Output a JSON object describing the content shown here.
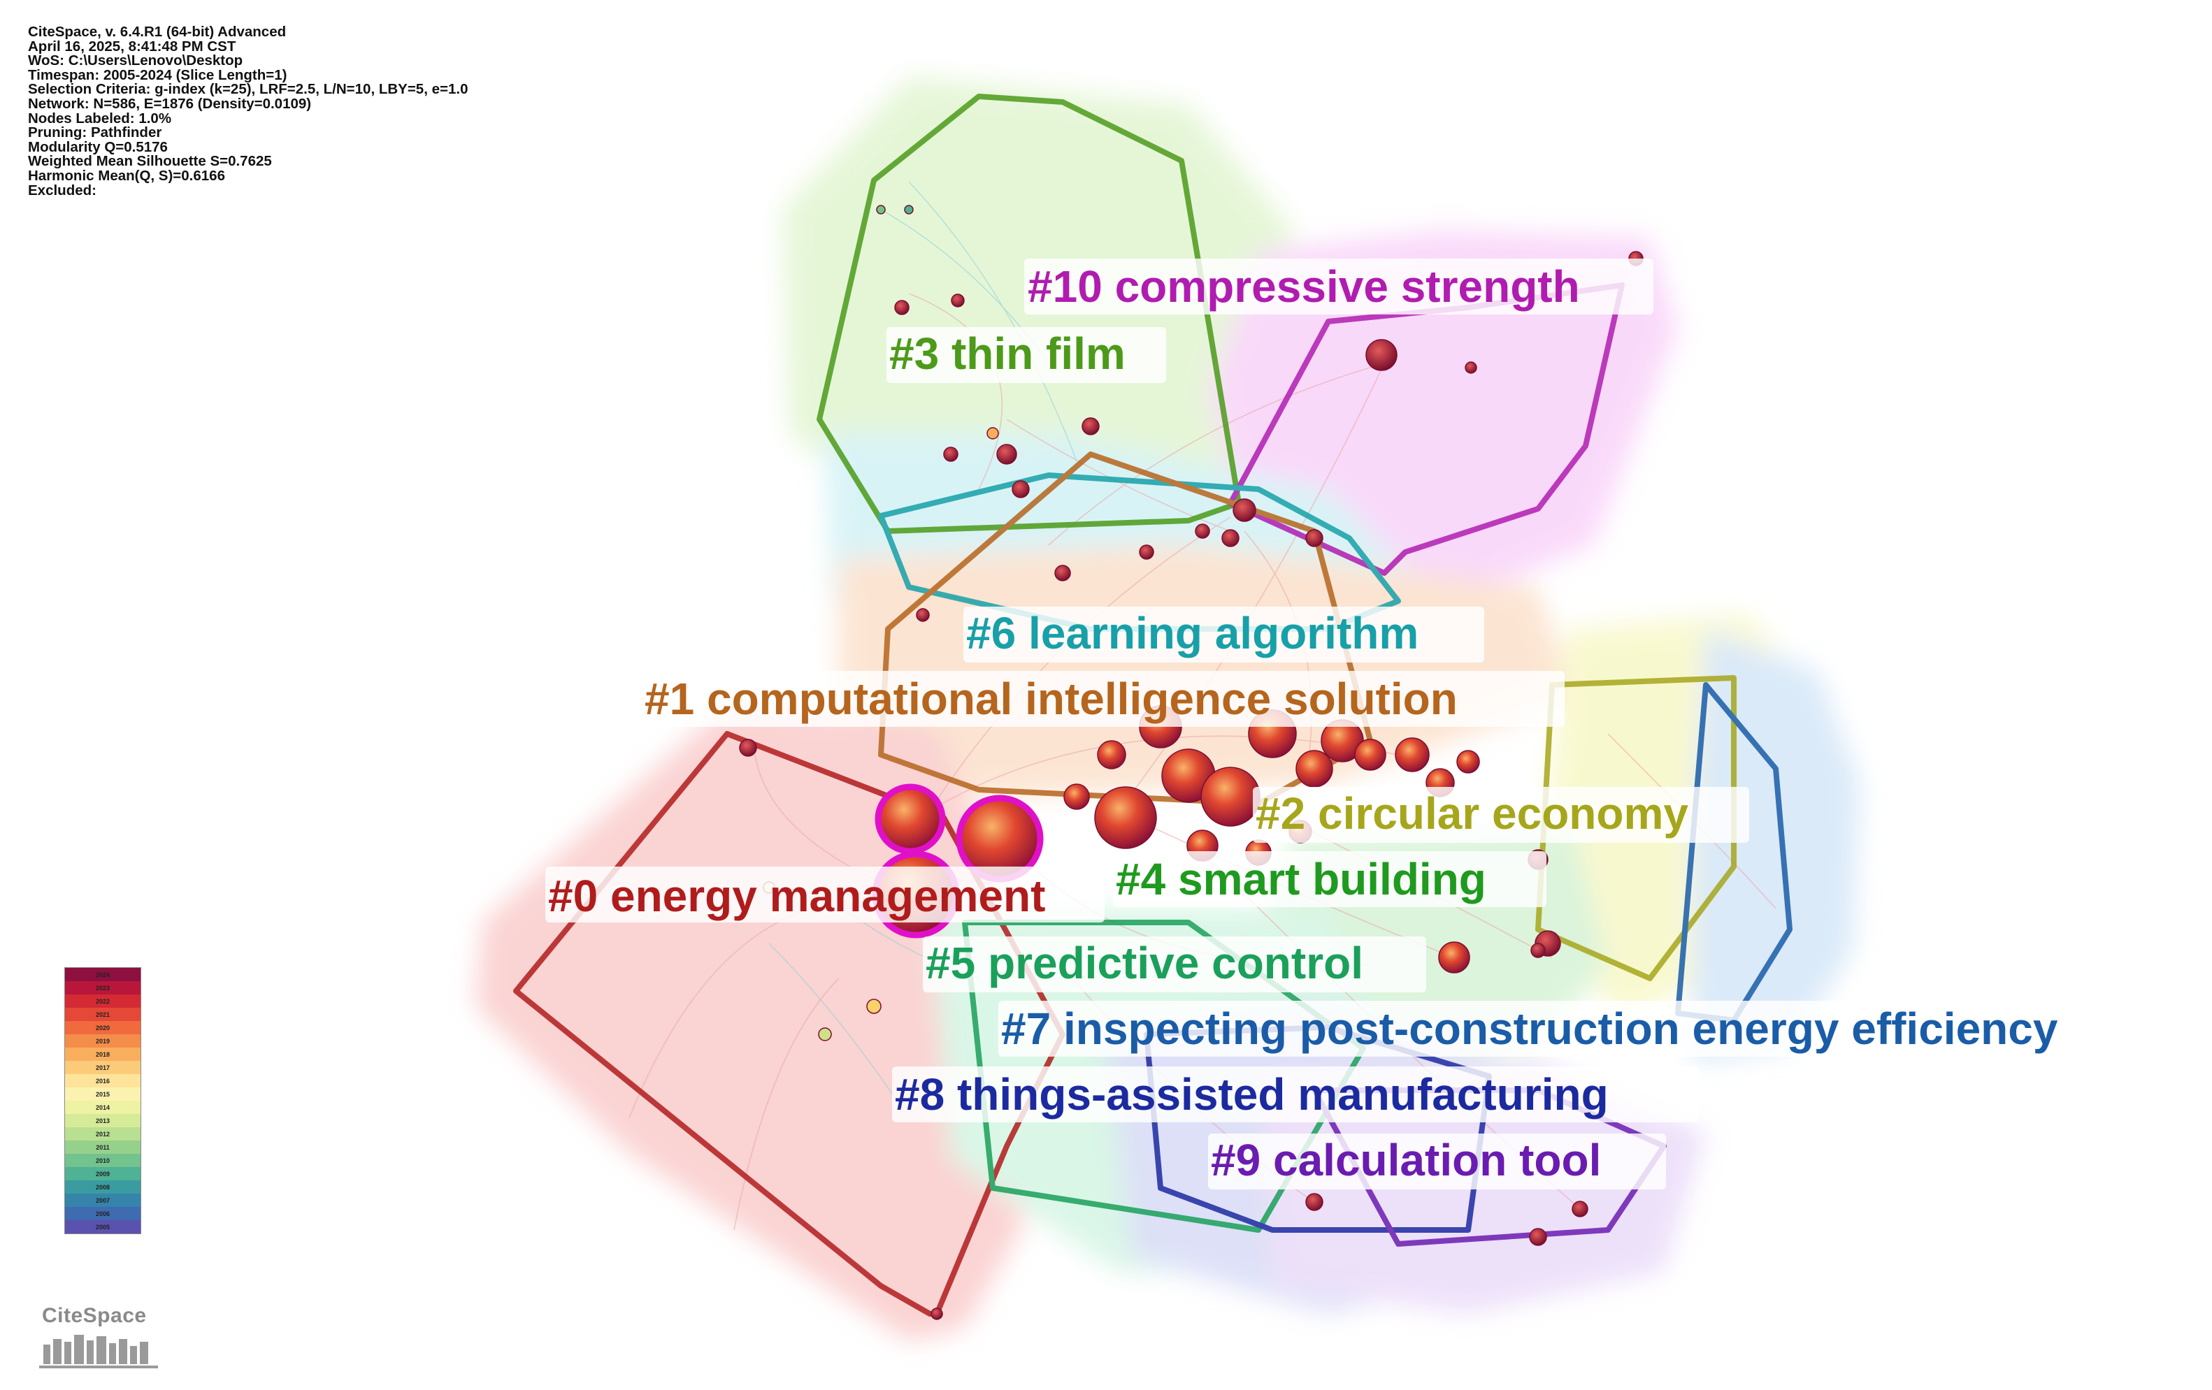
{
  "info": {
    "lines": [
      "CiteSpace, v. 6.4.R1 (64-bit) Advanced",
      "April 16, 2025, 8:41:48 PM CST",
      "WoS: C:\\Users\\Lenovo\\Desktop",
      "Timespan: 2005-2024 (Slice Length=1)",
      "Selection Criteria: g-index (k=25), LRF=2.5, L/N=10, LBY=5, e=1.0",
      "Network: N=586, E=1876 (Density=0.0109)",
      "Nodes Labeled: 1.0%",
      "Pruning: Pathfinder",
      "Modularity Q=0.5176",
      "Weighted Mean Silhouette S=0.7625",
      "Harmonic Mean(Q, S)=0.6166",
      "Excluded:"
    ]
  },
  "clusters": [
    {
      "id": "c0",
      "label": "#0 energy management",
      "color": "#b01c1c",
      "fill": "#f7a8a8"
    },
    {
      "id": "c1",
      "label": "#1 computational intelligence solution",
      "color": "#b5651d",
      "fill": "#f9cba6"
    },
    {
      "id": "c2",
      "label": "#2 circular economy",
      "color": "#a6a61c",
      "fill": "#f3f3a0"
    },
    {
      "id": "c3",
      "label": "#3 thin film",
      "color": "#4c9a1a",
      "fill": "#cdeeb0"
    },
    {
      "id": "c4",
      "label": "#4 smart building",
      "color": "#1f9a1f",
      "fill": "#b8eab8"
    },
    {
      "id": "c5",
      "label": "#5 predictive control",
      "color": "#1aa05a",
      "fill": "#b6eed0"
    },
    {
      "id": "c6",
      "label": "#6 learning algorithm",
      "color": "#17a0a8",
      "fill": "#b3e8ee"
    },
    {
      "id": "c7",
      "label": "#7 inspecting post-construction energy efficiency",
      "color": "#1a5ca8",
      "fill": "#b7d6f3"
    },
    {
      "id": "c8",
      "label": "#8 things-assisted manufacturing",
      "color": "#1c2aa0",
      "fill": "#bcc3f0"
    },
    {
      "id": "c9",
      "label": "#9 calculation tool",
      "color": "#6a1cb0",
      "fill": "#dcc3f5"
    },
    {
      "id": "c10",
      "label": "#10 compressive strength",
      "color": "#b01cb0",
      "fill": "#f5b5f5"
    }
  ],
  "legend": {
    "years": [
      "2024",
      "2023",
      "2022",
      "2021",
      "2020",
      "2019",
      "2018",
      "2017",
      "2016",
      "2015",
      "2014",
      "2013",
      "2012",
      "2011",
      "2010",
      "2009",
      "2008",
      "2007",
      "2006",
      "2005"
    ],
    "colors": [
      "#8e1040",
      "#b8163a",
      "#d42a34",
      "#e54836",
      "#f06a3e",
      "#f58d4a",
      "#f9ae5e",
      "#fbcb79",
      "#fde49a",
      "#fcf2b0",
      "#eef3a4",
      "#d6eb98",
      "#b9df90",
      "#96d18c",
      "#72c38e",
      "#4fb295",
      "#3a9c9f",
      "#3584aa",
      "#3f6bb0",
      "#5a52ae"
    ]
  },
  "logo": {
    "text": "CiteSpace"
  }
}
